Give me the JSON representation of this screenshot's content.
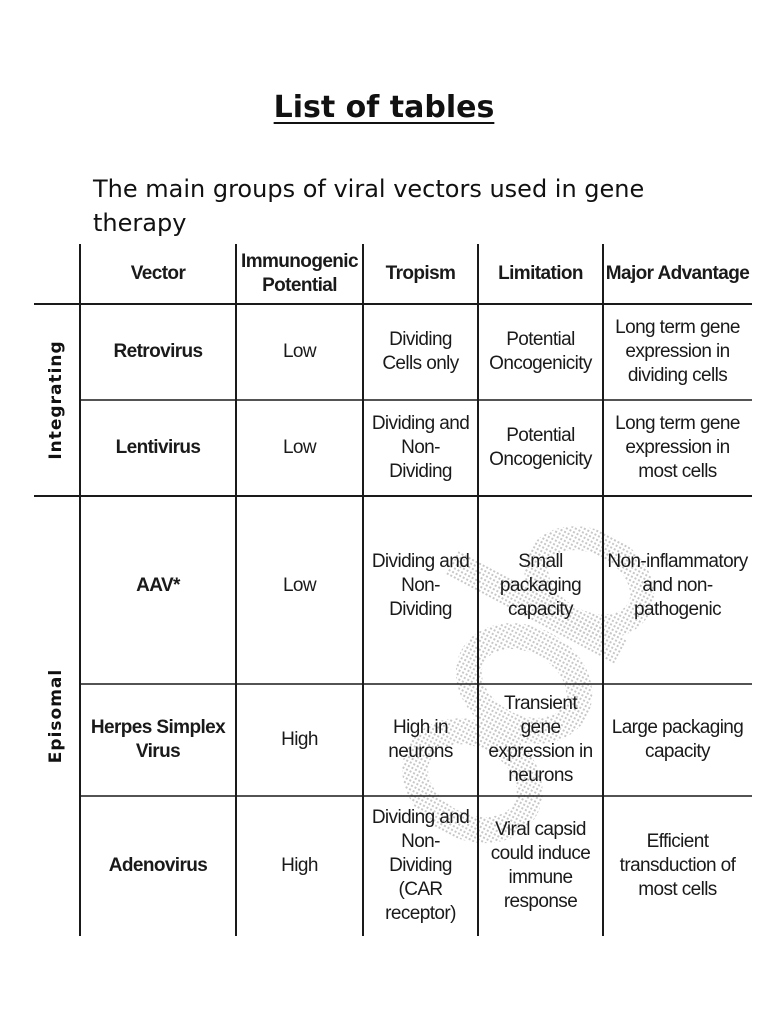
{
  "page": {
    "title": "List of tables",
    "caption": "The main groups of viral vectors used in gene therapy"
  },
  "table": {
    "headers": {
      "vector": "Vector",
      "immunogenic": "Immunogenic\nPotential",
      "tropism": "Tropism",
      "limitation": "Limitation",
      "advantage": "Major Advantage"
    },
    "groups": [
      {
        "label": "Integrating"
      },
      {
        "label": "Episomal"
      }
    ],
    "rows": [
      {
        "vector": "Retrovirus",
        "immunogenic": "Low",
        "tropism": "Dividing\nCells only",
        "limitation": "Potential\nOncogenicity",
        "advantage": "Long term gene\nexpression in\ndividing cells"
      },
      {
        "vector": "Lentivirus",
        "immunogenic": "Low",
        "tropism": "Dividing and\nNon-\nDividing",
        "limitation": "Potential\nOncogenicity",
        "advantage": "Long term gene\nexpression in\nmost cells"
      },
      {
        "vector": "AAV*",
        "immunogenic": "Low",
        "tropism": "Dividing and\nNon-\nDividing",
        "limitation": "Small\npackaging\ncapacity",
        "advantage": "Non-inflammatory\nand non-\npathogenic"
      },
      {
        "vector": "Herpes Simplex\nVirus",
        "immunogenic": "High",
        "tropism": "High in\nneurons",
        "limitation": "Transient\ngene\nexpression in\nneurons",
        "advantage": "Large packaging\ncapacity"
      },
      {
        "vector": "Adenovirus",
        "immunogenic": "High",
        "tropism": "Dividing and\nNon-\nDividing\n(CAR\nreceptor)",
        "limitation": "Viral capsid\ncould induce\nimmune\nresponse",
        "advantage": "Efficient\ntransduction of\nmost cells"
      }
    ]
  }
}
